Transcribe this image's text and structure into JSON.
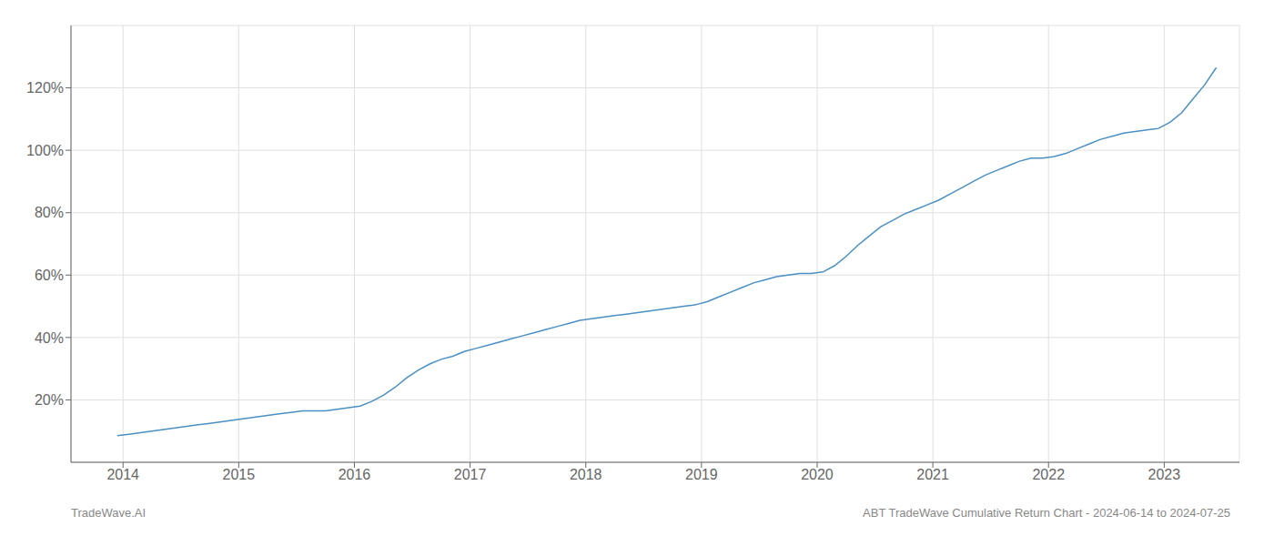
{
  "chart_data": {
    "type": "line",
    "title": "ABT TradeWave Cumulative Return Chart - 2024-06-14 to 2024-07-25",
    "annotations": [
      "TradeWave.AI"
    ],
    "color": "#4a90c4",
    "grid": true,
    "xlim": [
      2013.55,
      2023.65
    ],
    "xticks": [
      2014,
      2015,
      2016,
      2017,
      2018,
      2019,
      2020,
      2021,
      2022,
      2023
    ],
    "ylim": [
      0,
      140
    ],
    "yticks": [
      {
        "value": 20,
        "label": "20%"
      },
      {
        "value": 40,
        "label": "40%"
      },
      {
        "value": 60,
        "label": "60%"
      },
      {
        "value": 80,
        "label": "80%"
      },
      {
        "value": 100,
        "label": "100%"
      },
      {
        "value": 120,
        "label": "120%"
      }
    ],
    "x": [
      2013.95,
      2014.05,
      2014.15,
      2014.25,
      2014.35,
      2014.45,
      2014.55,
      2014.65,
      2014.75,
      2014.85,
      2014.95,
      2015.05,
      2015.15,
      2015.25,
      2015.35,
      2015.45,
      2015.55,
      2015.65,
      2015.75,
      2015.85,
      2015.95,
      2016.05,
      2016.15,
      2016.25,
      2016.35,
      2016.45,
      2016.55,
      2016.65,
      2016.75,
      2016.85,
      2016.95,
      2017.05,
      2017.15,
      2017.25,
      2017.35,
      2017.45,
      2017.55,
      2017.65,
      2017.75,
      2017.85,
      2017.95,
      2018.05,
      2018.15,
      2018.25,
      2018.35,
      2018.45,
      2018.55,
      2018.65,
      2018.75,
      2018.85,
      2018.95,
      2019.05,
      2019.15,
      2019.25,
      2019.35,
      2019.45,
      2019.55,
      2019.65,
      2019.75,
      2019.85,
      2019.95,
      2020.05,
      2020.15,
      2020.25,
      2020.35,
      2020.45,
      2020.55,
      2020.65,
      2020.75,
      2020.85,
      2020.95,
      2021.05,
      2021.15,
      2021.25,
      2021.35,
      2021.45,
      2021.55,
      2021.65,
      2021.75,
      2021.85,
      2021.95,
      2022.05,
      2022.15,
      2022.25,
      2022.35,
      2022.45,
      2022.55,
      2022.65,
      2022.75,
      2022.85,
      2022.95,
      2023.05,
      2023.15,
      2023.25,
      2023.35,
      2023.45
    ],
    "values": [
      8.5,
      9.0,
      9.5,
      10.0,
      10.5,
      11.0,
      11.5,
      12.0,
      12.5,
      13.0,
      13.5,
      14.0,
      14.5,
      15.0,
      15.5,
      16.0,
      16.5,
      16.5,
      16.5,
      17.0,
      17.5,
      18.0,
      19.5,
      21.5,
      24.0,
      27.0,
      29.5,
      31.5,
      33.0,
      34.0,
      35.5,
      36.5,
      37.5,
      38.5,
      39.5,
      40.5,
      41.5,
      42.5,
      43.5,
      44.5,
      45.5,
      46.0,
      46.5,
      47.0,
      47.5,
      48.0,
      48.5,
      49.0,
      49.5,
      50.0,
      50.5,
      51.5,
      53.0,
      54.5,
      56.0,
      57.5,
      58.5,
      59.5,
      60.0,
      60.5,
      60.5,
      61.0,
      63.0,
      66.0,
      69.5,
      72.5,
      75.5,
      77.5,
      79.5,
      81.0,
      82.5,
      84.0,
      86.0,
      88.0,
      90.0,
      92.0,
      93.5,
      95.0,
      96.5,
      97.5,
      97.5,
      98.0,
      99.0,
      100.5,
      102.0,
      103.5,
      104.5,
      105.5,
      106.0,
      106.5,
      107.0,
      109.0,
      112.0,
      116.5,
      121.0,
      126.5
    ]
  }
}
